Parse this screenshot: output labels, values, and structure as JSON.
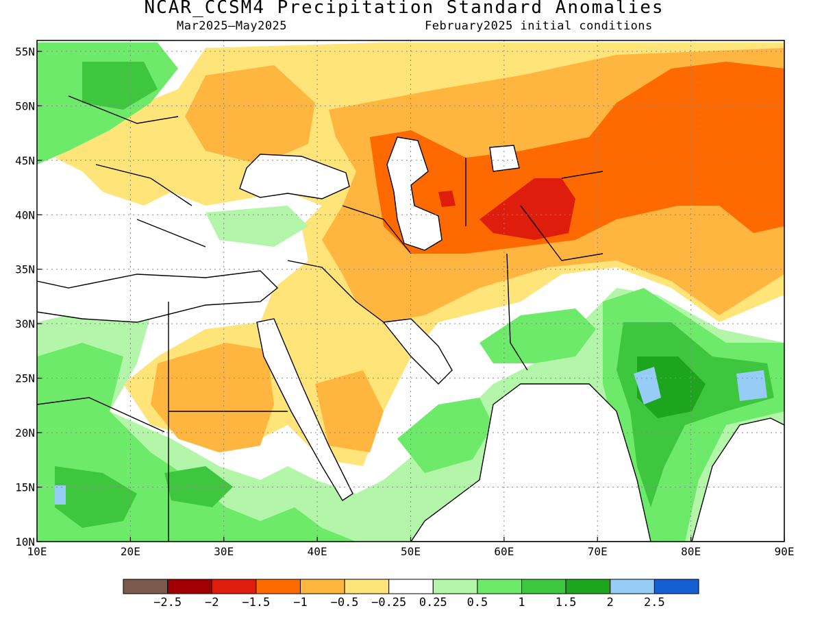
{
  "title": "NCAR_CCSM4 Precipitation Standard Anomalies",
  "subtitle_left": "Mar2025–May2025",
  "subtitle_right": "February2025 initial conditions",
  "map": {
    "lon_range": [
      10,
      90
    ],
    "lat_range": [
      10,
      56
    ],
    "lon_ticks": [
      {
        "value": 10,
        "label": "10E"
      },
      {
        "value": 20,
        "label": "20E"
      },
      {
        "value": 30,
        "label": "30E"
      },
      {
        "value": 40,
        "label": "40E"
      },
      {
        "value": 50,
        "label": "50E"
      },
      {
        "value": 60,
        "label": "60E"
      },
      {
        "value": 70,
        "label": "70E"
      },
      {
        "value": 80,
        "label": "80E"
      },
      {
        "value": 90,
        "label": "90E"
      }
    ],
    "lat_ticks": [
      {
        "value": 10,
        "label": "10N"
      },
      {
        "value": 15,
        "label": "15N"
      },
      {
        "value": 20,
        "label": "20N"
      },
      {
        "value": 25,
        "label": "25N"
      },
      {
        "value": 30,
        "label": "30N"
      },
      {
        "value": 35,
        "label": "35N"
      },
      {
        "value": 40,
        "label": "40N"
      },
      {
        "value": 45,
        "label": "45N"
      },
      {
        "value": 50,
        "label": "50N"
      },
      {
        "value": 55,
        "label": "55N"
      }
    ],
    "grid": "dotted"
  },
  "colorbar": {
    "colors": [
      "#7a5a4a",
      "#a00000",
      "#de1d0c",
      "#ff6a00",
      "#ffb640",
      "#ffe479",
      "#ffffff",
      "#b3f5a9",
      "#6eea6a",
      "#3ec63e",
      "#1ea51e",
      "#96ccf5",
      "#1460d2"
    ],
    "labels": [
      "−2.5",
      "−2",
      "−1.5",
      "−1",
      "−0.5",
      "−0.25",
      "0.25",
      "0.5",
      "1",
      "1.5",
      "2",
      "2.5"
    ]
  }
}
